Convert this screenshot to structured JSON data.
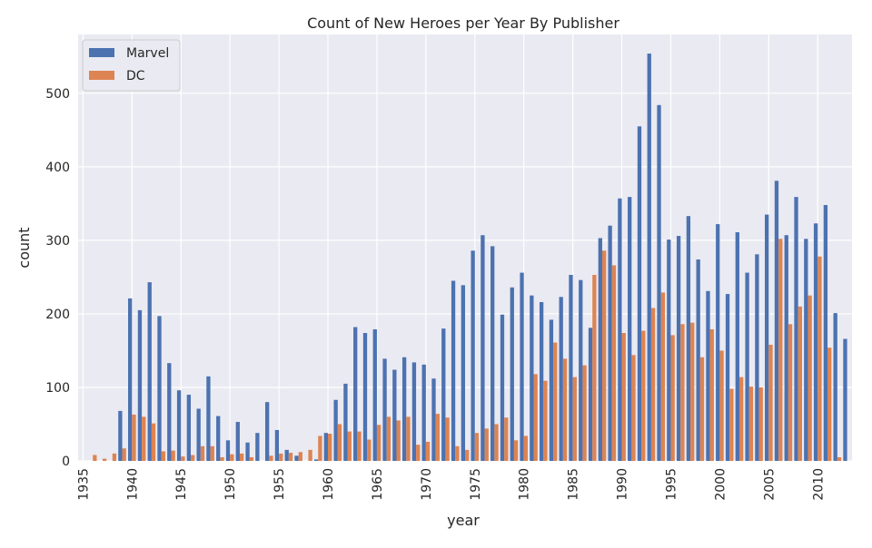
{
  "chart_data": {
    "type": "bar",
    "title": "Count of New Heroes per Year By Publisher",
    "xlabel": "year",
    "ylabel": "count",
    "x_tick_labels": [
      "1935",
      "1940",
      "1945",
      "1950",
      "1955",
      "1960",
      "1965",
      "1970",
      "1975",
      "1980",
      "1985",
      "1990",
      "1995",
      "2000",
      "2005",
      "2010"
    ],
    "y_tick_labels": [
      "0",
      "100",
      "200",
      "300",
      "400",
      "500"
    ],
    "ylim": [
      0,
      580
    ],
    "grid": true,
    "legend_position": "top-left",
    "colors": {
      "Marvel": "#4c72b0",
      "DC": "#dd8452",
      "background": "#eaeaf2",
      "grid": "#ffffff"
    },
    "categories": [
      1935,
      1936,
      1937,
      1938,
      1939,
      1940,
      1941,
      1942,
      1943,
      1944,
      1945,
      1946,
      1947,
      1948,
      1949,
      1950,
      1951,
      1952,
      1953,
      1954,
      1955,
      1956,
      1957,
      1958,
      1959,
      1960,
      1961,
      1962,
      1963,
      1964,
      1965,
      1966,
      1967,
      1968,
      1969,
      1970,
      1971,
      1972,
      1973,
      1974,
      1975,
      1976,
      1977,
      1978,
      1979,
      1980,
      1981,
      1982,
      1983,
      1984,
      1985,
      1986,
      1987,
      1988,
      1989,
      1990,
      1991,
      1992,
      1993,
      1994,
      1995,
      1996,
      1997,
      1998,
      1999,
      2000,
      2001,
      2002,
      2003,
      2004,
      2005,
      2006,
      2007,
      2008,
      2009,
      2010,
      2011,
      2012,
      2013
    ],
    "series": [
      {
        "name": "Marvel",
        "values": [
          0,
          0,
          0,
          0,
          68,
          221,
          205,
          243,
          197,
          133,
          96,
          90,
          71,
          115,
          61,
          28,
          53,
          25,
          38,
          80,
          42,
          15,
          7,
          0,
          2,
          38,
          83,
          105,
          182,
          174,
          179,
          139,
          124,
          141,
          134,
          131,
          112,
          180,
          245,
          239,
          286,
          307,
          292,
          199,
          236,
          256,
          225,
          216,
          192,
          223,
          253,
          246,
          181,
          303,
          320,
          357,
          359,
          455,
          554,
          484,
          301,
          306,
          333,
          274,
          231,
          322,
          227,
          311,
          256,
          281,
          335,
          381,
          307,
          359,
          302,
          323,
          348,
          201,
          166
        ]
      },
      {
        "name": "DC",
        "values": [
          0,
          8,
          3,
          10,
          17,
          63,
          60,
          51,
          13,
          14,
          6,
          8,
          20,
          20,
          5,
          9,
          10,
          5,
          0,
          7,
          10,
          11,
          12,
          15,
          34,
          37,
          50,
          40,
          40,
          29,
          49,
          60,
          55,
          60,
          22,
          26,
          64,
          59,
          20,
          15,
          38,
          44,
          50,
          59,
          28,
          34,
          118,
          109,
          161,
          139,
          114,
          130,
          253,
          286,
          266,
          174,
          144,
          177,
          208,
          229,
          171,
          186,
          188,
          141,
          179,
          150,
          98,
          114,
          101,
          100,
          158,
          302,
          186,
          210,
          225,
          278,
          154,
          5,
          0
        ]
      }
    ]
  }
}
